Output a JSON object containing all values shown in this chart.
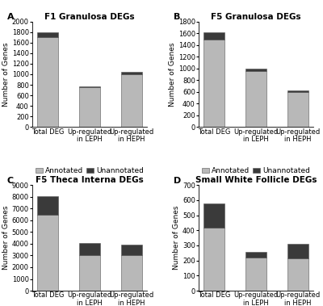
{
  "panels": [
    {
      "label": "A",
      "title": "F1 Granulosa DEGs",
      "categories": [
        "Total DEG",
        "Up-regulated\nin LEPH",
        "Up-regulated\nin HEPH"
      ],
      "annotated": [
        1700,
        760,
        1000
      ],
      "unannotated": [
        100,
        15,
        45
      ],
      "ylim": [
        0,
        2000
      ],
      "yticks": [
        0,
        200,
        400,
        600,
        800,
        1000,
        1200,
        1400,
        1600,
        1800,
        2000
      ]
    },
    {
      "label": "B",
      "title": "F5 Granulosa DEGs",
      "categories": [
        "Total DEG",
        "Up-regulated\nin LEPH",
        "Up-regulated\nin HEPH"
      ],
      "annotated": [
        1490,
        960,
        600
      ],
      "unannotated": [
        130,
        35,
        30
      ],
      "ylim": [
        0,
        1800
      ],
      "yticks": [
        0,
        200,
        400,
        600,
        800,
        1000,
        1200,
        1400,
        1600,
        1800
      ]
    },
    {
      "label": "C",
      "title": "F5 Theca Interna DEGs",
      "categories": [
        "Total DEG",
        "Up-regulated\nin LEPH",
        "Up-regulated\nin HEPH"
      ],
      "annotated": [
        6450,
        3050,
        3050
      ],
      "unannotated": [
        1600,
        1000,
        870
      ],
      "ylim": [
        0,
        9000
      ],
      "yticks": [
        0,
        1000,
        2000,
        3000,
        4000,
        5000,
        6000,
        7000,
        8000,
        9000
      ]
    },
    {
      "label": "D",
      "title": "Small White Follicle DEGs",
      "categories": [
        "Total DEG",
        "Up-regulated\nin LEPH",
        "Up-regulated\nin HEPH"
      ],
      "annotated": [
        420,
        220,
        215
      ],
      "unannotated": [
        160,
        35,
        95
      ],
      "ylim": [
        0,
        700
      ],
      "yticks": [
        0,
        100,
        200,
        300,
        400,
        500,
        600,
        700
      ]
    }
  ],
  "annotated_color": "#b8b8b8",
  "unannotated_color": "#3a3a3a",
  "bar_width": 0.5,
  "ylabel": "Number of Genes",
  "background_color": "#ffffff",
  "title_fontsize": 7.5,
  "tick_fontsize": 6,
  "label_fontsize": 6.5,
  "legend_fontsize": 6.5,
  "panel_label_fontsize": 8
}
